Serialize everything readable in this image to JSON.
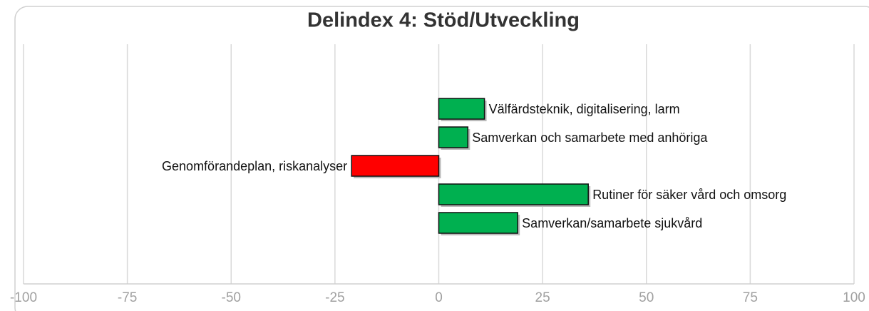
{
  "chart_data": {
    "type": "bar",
    "orientation": "horizontal",
    "title": "Delindex 4: Stöd/Utveckling",
    "categories": [
      "Välfärdsteknik, digitalisering, larm",
      "Samverkan och samarbete med anhöriga",
      "Genomförandeplan, riskanalyser",
      "Rutiner för säker vård och omsorg",
      "Samverkan/samarbete sjukvård"
    ],
    "values": [
      11,
      7,
      -21,
      36,
      19
    ],
    "colors": [
      "#00b050",
      "#00b050",
      "#ff0000",
      "#00b050",
      "#00b050"
    ],
    "xlim": [
      -100,
      100
    ],
    "xticks": [
      -100,
      -75,
      -50,
      -25,
      0,
      25,
      50,
      75,
      100
    ],
    "grid": true
  }
}
